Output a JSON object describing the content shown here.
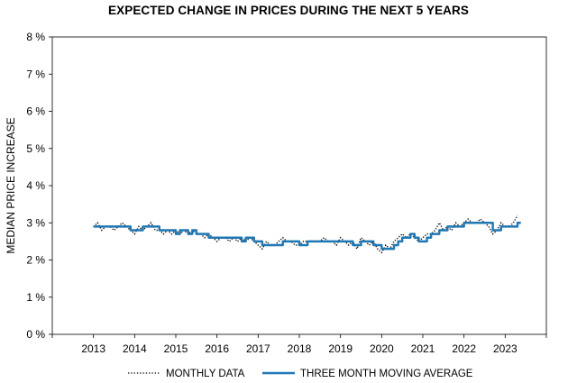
{
  "chart_data": {
    "type": "line",
    "title": "EXPECTED CHANGE IN PRICES DURING THE NEXT 5 YEARS",
    "ylabel": "MEDIAN PRICE INCREASE",
    "xlabel": "",
    "ylim": [
      0,
      8
    ],
    "xlim": [
      2012,
      2024
    ],
    "y_ticks": [
      0,
      1,
      2,
      3,
      4,
      5,
      6,
      7,
      8
    ],
    "y_tick_labels": [
      "0 %",
      "1 %",
      "2 %",
      "3 %",
      "4 %",
      "5 %",
      "6 %",
      "7 %",
      "8 %"
    ],
    "x_tick_positions": [
      2013,
      2014,
      2015,
      2016,
      2017,
      2018,
      2019,
      2020,
      2021,
      2022,
      2023
    ],
    "x_tick_labels": [
      "2013",
      "2014",
      "2015",
      "2016",
      "2017",
      "2018",
      "2019",
      "2020",
      "2021",
      "2022",
      "2023"
    ],
    "legend_position": "bottom",
    "series": [
      {
        "name": "MONTHLY DATA",
        "style": "dotted",
        "color": "#000000",
        "x": [
          2013.0,
          2013.1,
          2013.2,
          2013.3,
          2013.4,
          2013.5,
          2013.6,
          2013.7,
          2013.8,
          2013.9,
          2014.0,
          2014.1,
          2014.2,
          2014.3,
          2014.4,
          2014.5,
          2014.6,
          2014.7,
          2014.8,
          2014.9,
          2015.0,
          2015.1,
          2015.2,
          2015.3,
          2015.4,
          2015.5,
          2015.6,
          2015.7,
          2015.8,
          2015.9,
          2016.0,
          2016.1,
          2016.2,
          2016.3,
          2016.4,
          2016.5,
          2016.6,
          2016.7,
          2016.8,
          2016.9,
          2017.0,
          2017.1,
          2017.2,
          2017.3,
          2017.4,
          2017.5,
          2017.6,
          2017.7,
          2017.8,
          2017.9,
          2018.0,
          2018.1,
          2018.2,
          2018.3,
          2018.4,
          2018.5,
          2018.6,
          2018.7,
          2018.8,
          2018.9,
          2019.0,
          2019.1,
          2019.2,
          2019.3,
          2019.4,
          2019.5,
          2019.6,
          2019.7,
          2019.8,
          2019.9,
          2020.0,
          2020.1,
          2020.2,
          2020.3,
          2020.4,
          2020.5,
          2020.6,
          2020.7,
          2020.8,
          2020.9,
          2021.0,
          2021.1,
          2021.2,
          2021.3,
          2021.4,
          2021.5,
          2021.6,
          2021.7,
          2021.8,
          2021.9,
          2022.0,
          2022.1,
          2022.2,
          2022.3,
          2022.4,
          2022.5,
          2022.6,
          2022.7,
          2022.8,
          2022.9,
          2023.0,
          2023.1,
          2023.2,
          2023.3
        ],
        "values": [
          2.9,
          3.0,
          2.8,
          2.9,
          2.9,
          2.8,
          2.9,
          3.0,
          2.9,
          2.8,
          2.7,
          2.9,
          2.8,
          2.9,
          3.0,
          2.8,
          2.8,
          2.7,
          2.8,
          2.7,
          2.8,
          2.7,
          2.8,
          2.7,
          2.8,
          2.7,
          2.7,
          2.6,
          2.7,
          2.6,
          2.5,
          2.6,
          2.6,
          2.5,
          2.6,
          2.5,
          2.6,
          2.5,
          2.6,
          2.5,
          2.4,
          2.3,
          2.5,
          2.4,
          2.4,
          2.5,
          2.6,
          2.5,
          2.5,
          2.4,
          2.4,
          2.5,
          2.5,
          2.5,
          2.5,
          2.5,
          2.6,
          2.5,
          2.5,
          2.4,
          2.6,
          2.5,
          2.4,
          2.5,
          2.3,
          2.6,
          2.5,
          2.4,
          2.5,
          2.3,
          2.2,
          2.4,
          2.3,
          2.5,
          2.6,
          2.7,
          2.6,
          2.7,
          2.6,
          2.5,
          2.6,
          2.7,
          2.7,
          2.8,
          3.0,
          2.8,
          2.9,
          2.8,
          3.0,
          2.9,
          3.0,
          3.1,
          3.0,
          3.0,
          3.1,
          3.0,
          2.9,
          2.7,
          2.8,
          3.0,
          2.9,
          2.9,
          3.0,
          3.2
        ]
      },
      {
        "name": "THREE MONTH MOVING AVERAGE",
        "style": "solid",
        "color": "#1f77b4",
        "x": [
          2013.0,
          2013.1,
          2013.2,
          2013.3,
          2013.4,
          2013.5,
          2013.6,
          2013.7,
          2013.8,
          2013.9,
          2014.0,
          2014.1,
          2014.2,
          2014.3,
          2014.4,
          2014.5,
          2014.6,
          2014.7,
          2014.8,
          2014.9,
          2015.0,
          2015.1,
          2015.2,
          2015.3,
          2015.4,
          2015.5,
          2015.6,
          2015.7,
          2015.8,
          2015.9,
          2016.0,
          2016.1,
          2016.2,
          2016.3,
          2016.4,
          2016.5,
          2016.6,
          2016.7,
          2016.8,
          2016.9,
          2017.0,
          2017.1,
          2017.2,
          2017.3,
          2017.4,
          2017.5,
          2017.6,
          2017.7,
          2017.8,
          2017.9,
          2018.0,
          2018.1,
          2018.2,
          2018.3,
          2018.4,
          2018.5,
          2018.6,
          2018.7,
          2018.8,
          2018.9,
          2019.0,
          2019.1,
          2019.2,
          2019.3,
          2019.4,
          2019.5,
          2019.6,
          2019.7,
          2019.8,
          2019.9,
          2020.0,
          2020.1,
          2020.2,
          2020.3,
          2020.4,
          2020.5,
          2020.6,
          2020.7,
          2020.8,
          2020.9,
          2021.0,
          2021.1,
          2021.2,
          2021.3,
          2021.4,
          2021.5,
          2021.6,
          2021.7,
          2021.8,
          2021.9,
          2022.0,
          2022.1,
          2022.2,
          2022.3,
          2022.4,
          2022.5,
          2022.6,
          2022.7,
          2022.8,
          2022.9,
          2023.0,
          2023.1,
          2023.2,
          2023.3
        ],
        "values": [
          2.9,
          2.9,
          2.9,
          2.9,
          2.9,
          2.9,
          2.9,
          2.9,
          2.9,
          2.8,
          2.8,
          2.8,
          2.9,
          2.9,
          2.9,
          2.9,
          2.8,
          2.8,
          2.8,
          2.8,
          2.7,
          2.8,
          2.8,
          2.7,
          2.8,
          2.7,
          2.7,
          2.7,
          2.6,
          2.6,
          2.6,
          2.6,
          2.6,
          2.6,
          2.6,
          2.6,
          2.5,
          2.6,
          2.6,
          2.5,
          2.5,
          2.4,
          2.4,
          2.4,
          2.4,
          2.4,
          2.5,
          2.5,
          2.5,
          2.5,
          2.4,
          2.4,
          2.5,
          2.5,
          2.5,
          2.5,
          2.5,
          2.5,
          2.5,
          2.5,
          2.5,
          2.5,
          2.5,
          2.4,
          2.4,
          2.5,
          2.5,
          2.5,
          2.4,
          2.4,
          2.3,
          2.3,
          2.3,
          2.4,
          2.5,
          2.6,
          2.6,
          2.7,
          2.6,
          2.5,
          2.5,
          2.6,
          2.7,
          2.7,
          2.8,
          2.8,
          2.9,
          2.9,
          2.9,
          2.9,
          3.0,
          3.0,
          3.0,
          3.0,
          3.0,
          3.0,
          3.0,
          2.8,
          2.8,
          2.9,
          2.9,
          2.9,
          2.9,
          3.0
        ]
      }
    ]
  }
}
